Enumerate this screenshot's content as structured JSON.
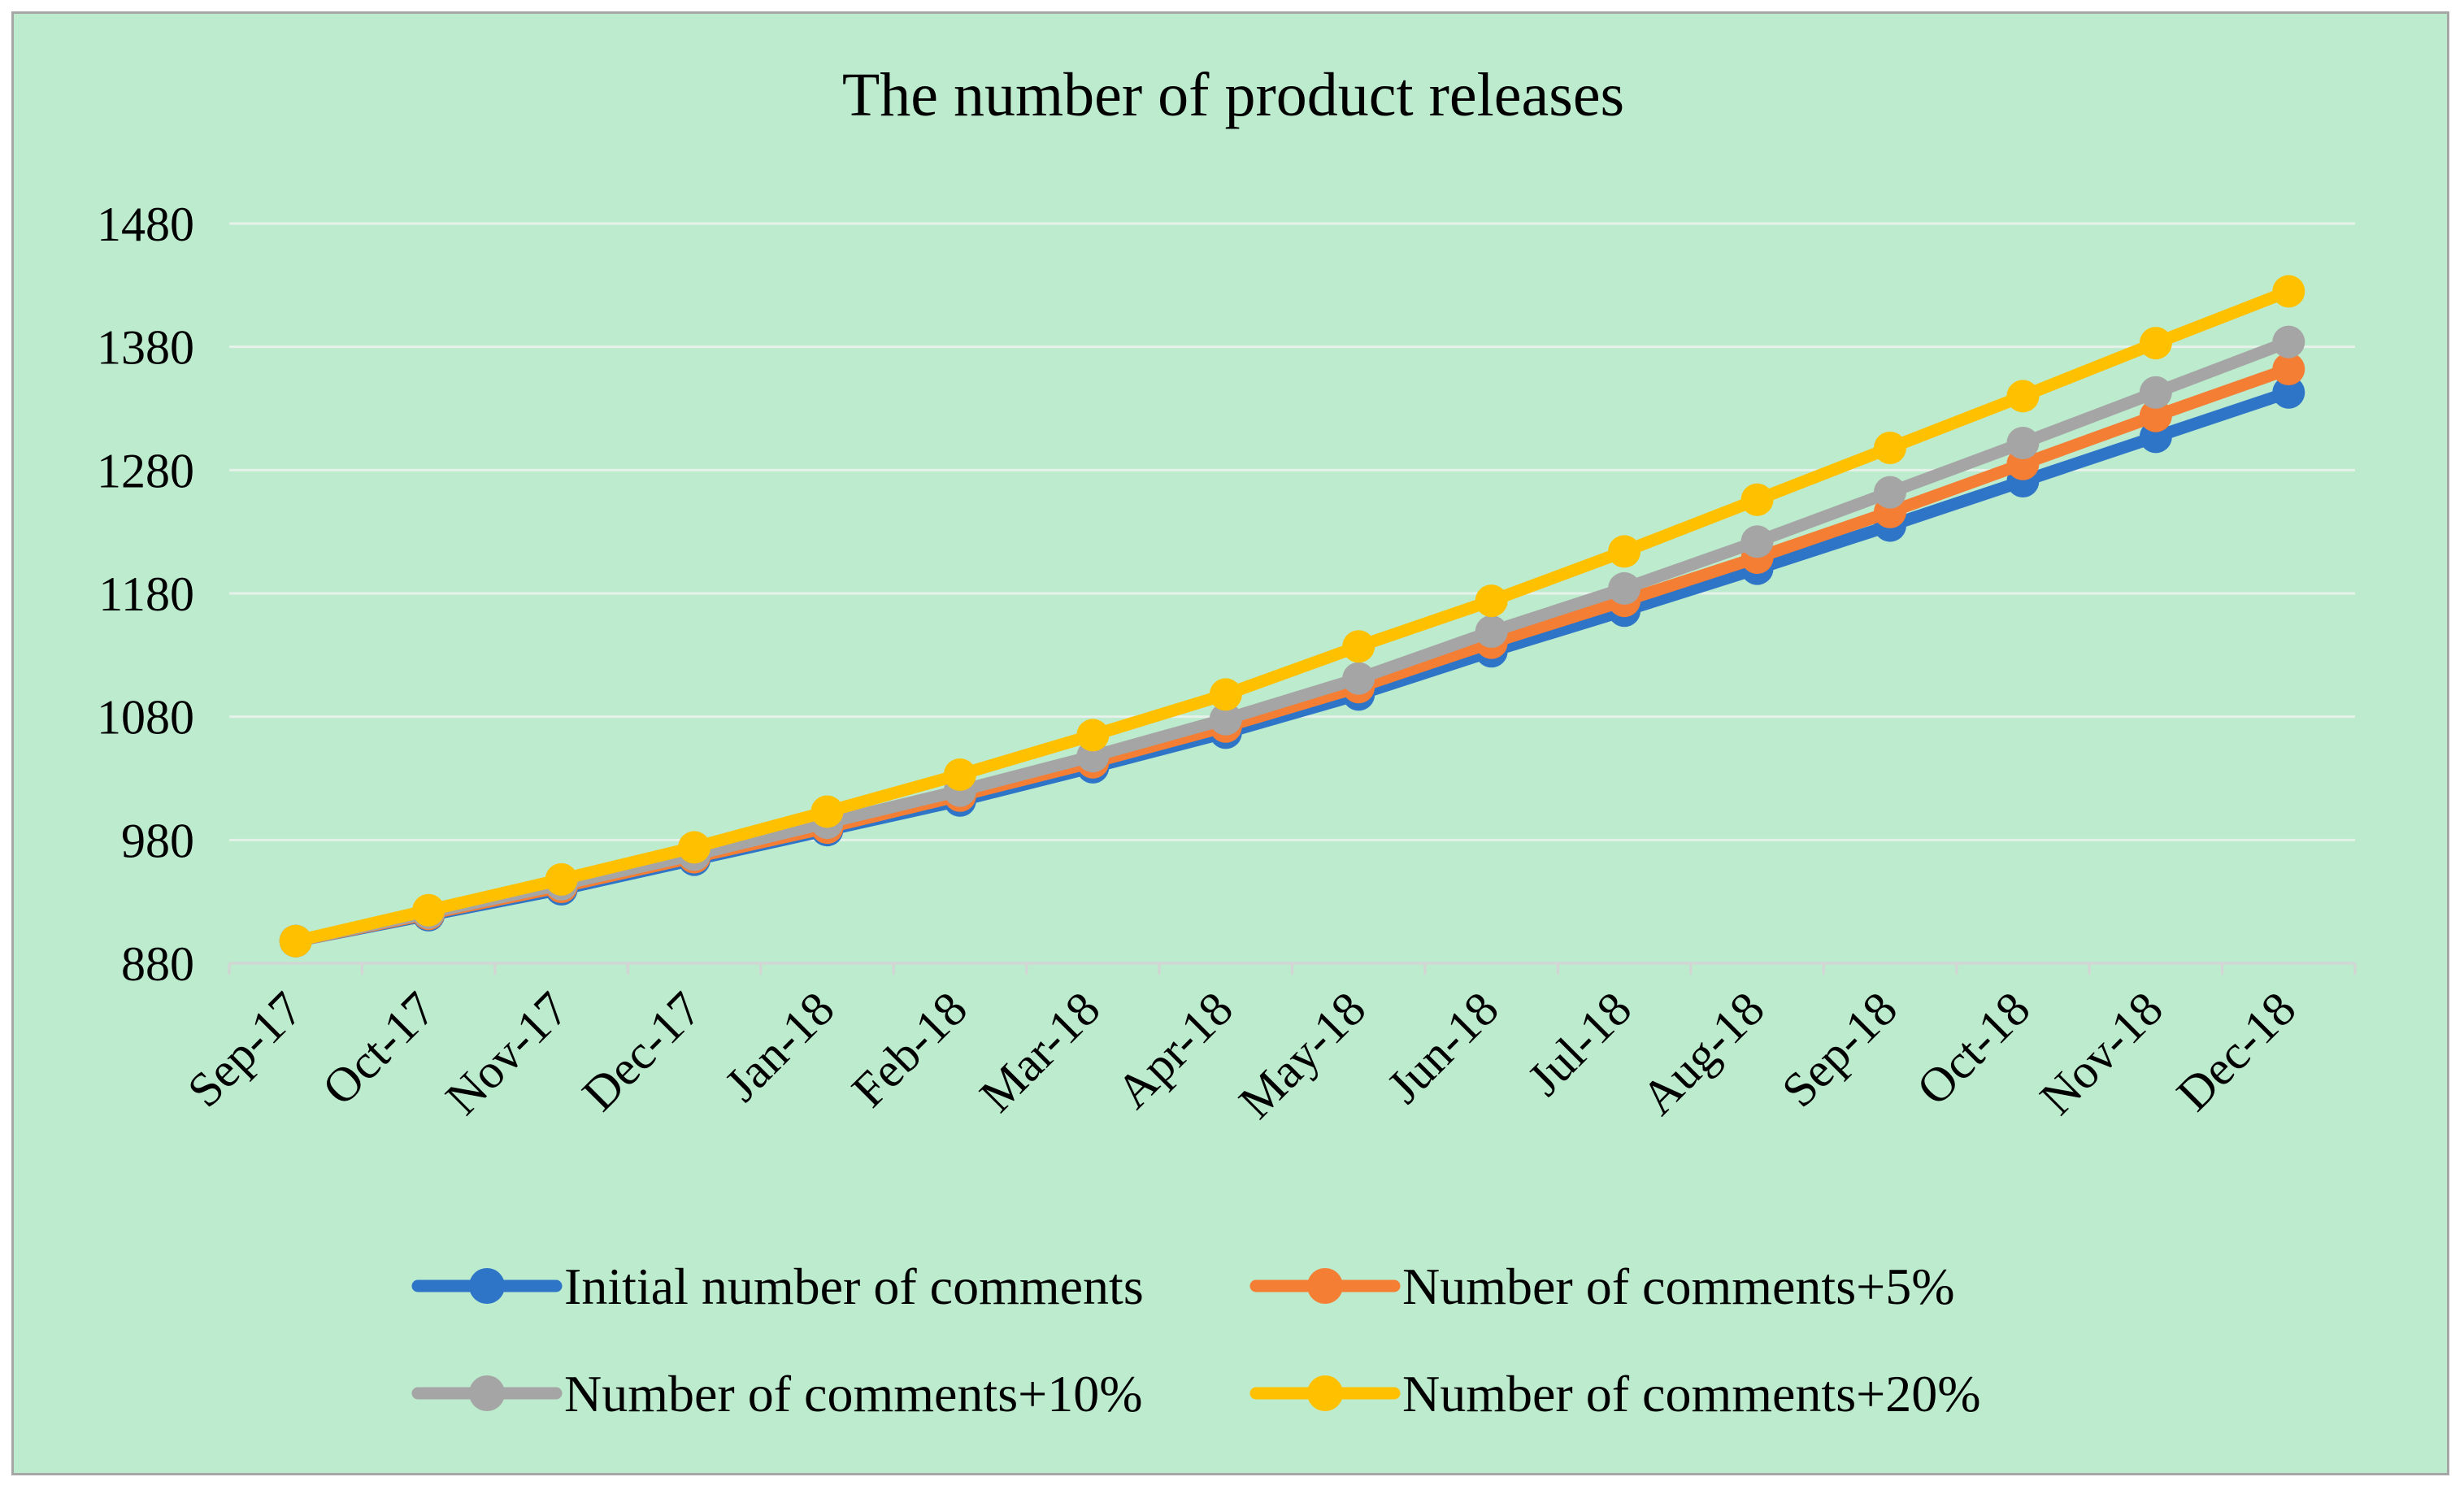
{
  "chart_data": {
    "type": "line",
    "title": "The number of product releases",
    "xlabel": "",
    "ylabel": "",
    "categories": [
      "Sep-17",
      "Oct-17",
      "Nov-17",
      "Dec-17",
      "Jan-18",
      "Feb-18",
      "Mar-18",
      "Apr-18",
      "May-18",
      "Jun-18",
      "Jul-18",
      "Aug-18",
      "Sep-18",
      "Oct-18",
      "Nov-18",
      "Dec-18"
    ],
    "ylim": [
      880,
      1480
    ],
    "yticks": [
      880,
      980,
      1080,
      1180,
      1280,
      1380,
      1480
    ],
    "grid": true,
    "legend_position": "bottom",
    "series": [
      {
        "name": "Initial number of comments",
        "color": "#2e75c8",
        "values": [
          898,
          919,
          940,
          964,
          988,
          1012,
          1039,
          1067,
          1098,
          1133,
          1166,
          1200,
          1235,
          1271,
          1307,
          1343
        ]
      },
      {
        "name": "Number of comments+5%",
        "color": "#f47e34",
        "values": [
          898,
          920,
          942,
          966,
          990,
          1016,
          1043,
          1072,
          1104,
          1140,
          1174,
          1209,
          1246,
          1285,
          1324,
          1362
        ]
      },
      {
        "name": "Number of comments+10%",
        "color": "#a5a5a5",
        "values": [
          898,
          921,
          944,
          968,
          994,
          1020,
          1048,
          1078,
          1111,
          1149,
          1184,
          1222,
          1262,
          1302,
          1343,
          1384
        ]
      },
      {
        "name": "Number of comments+20%",
        "color": "#ffc000",
        "values": [
          898,
          923,
          948,
          974,
          1003,
          1033,
          1065,
          1098,
          1137,
          1174,
          1214,
          1256,
          1298,
          1340,
          1383,
          1425
        ]
      }
    ]
  }
}
